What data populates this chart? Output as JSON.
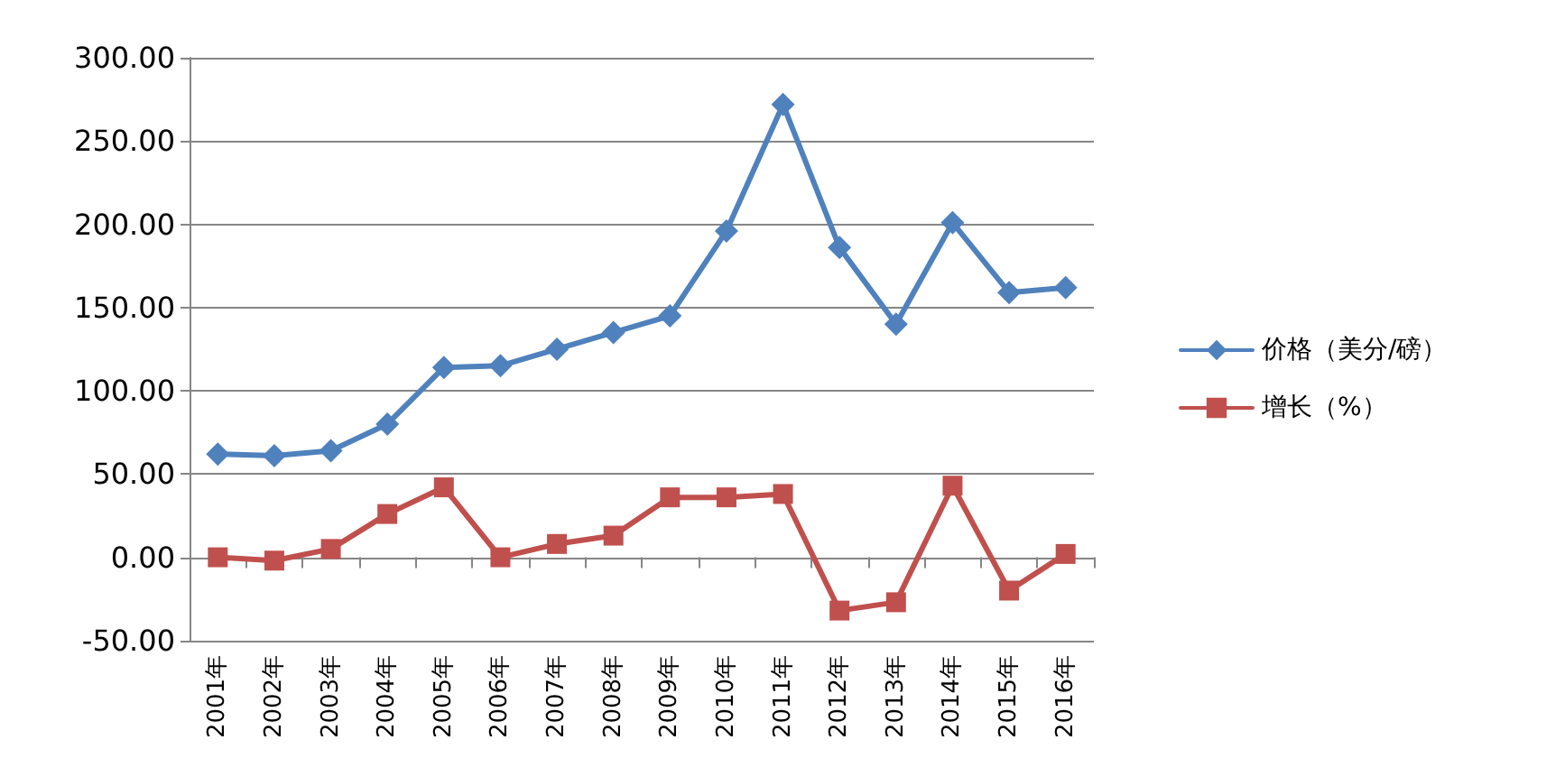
{
  "chart_data": {
    "type": "line",
    "categories": [
      "2001年",
      "2002年",
      "2003年",
      "2004年",
      "2005年",
      "2006年",
      "2007年",
      "2008年",
      "2009年",
      "2010年",
      "2011年",
      "2012年",
      "2013年",
      "2014年",
      "2015年",
      "2016年"
    ],
    "series": [
      {
        "name": "价格（美分/磅）",
        "color": "#4f81bd",
        "marker": "diamond",
        "values": [
          62,
          61,
          64,
          80,
          114,
          115,
          125,
          135,
          145,
          196,
          272,
          186,
          140,
          201,
          159,
          162
        ]
      },
      {
        "name": "增长（%）",
        "color": "#c0504d",
        "marker": "square",
        "values": [
          0,
          -2,
          5,
          26,
          42,
          0,
          8,
          13,
          36,
          36,
          38,
          -32,
          -27,
          43,
          -20,
          2
        ]
      }
    ],
    "ylim": [
      -50,
      300
    ],
    "yticks": [
      {
        "value": -50,
        "label": "-50.00"
      },
      {
        "value": 0,
        "label": "0.00"
      },
      {
        "value": 50,
        "label": "50.00"
      },
      {
        "value": 100,
        "label": "100.00"
      },
      {
        "value": 150,
        "label": "150.00"
      },
      {
        "value": 200,
        "label": "200.00"
      },
      {
        "value": 250,
        "label": "250.00"
      },
      {
        "value": 300,
        "label": "300.00"
      }
    ],
    "grid": "y",
    "legend": "right",
    "line_style": "solid"
  }
}
